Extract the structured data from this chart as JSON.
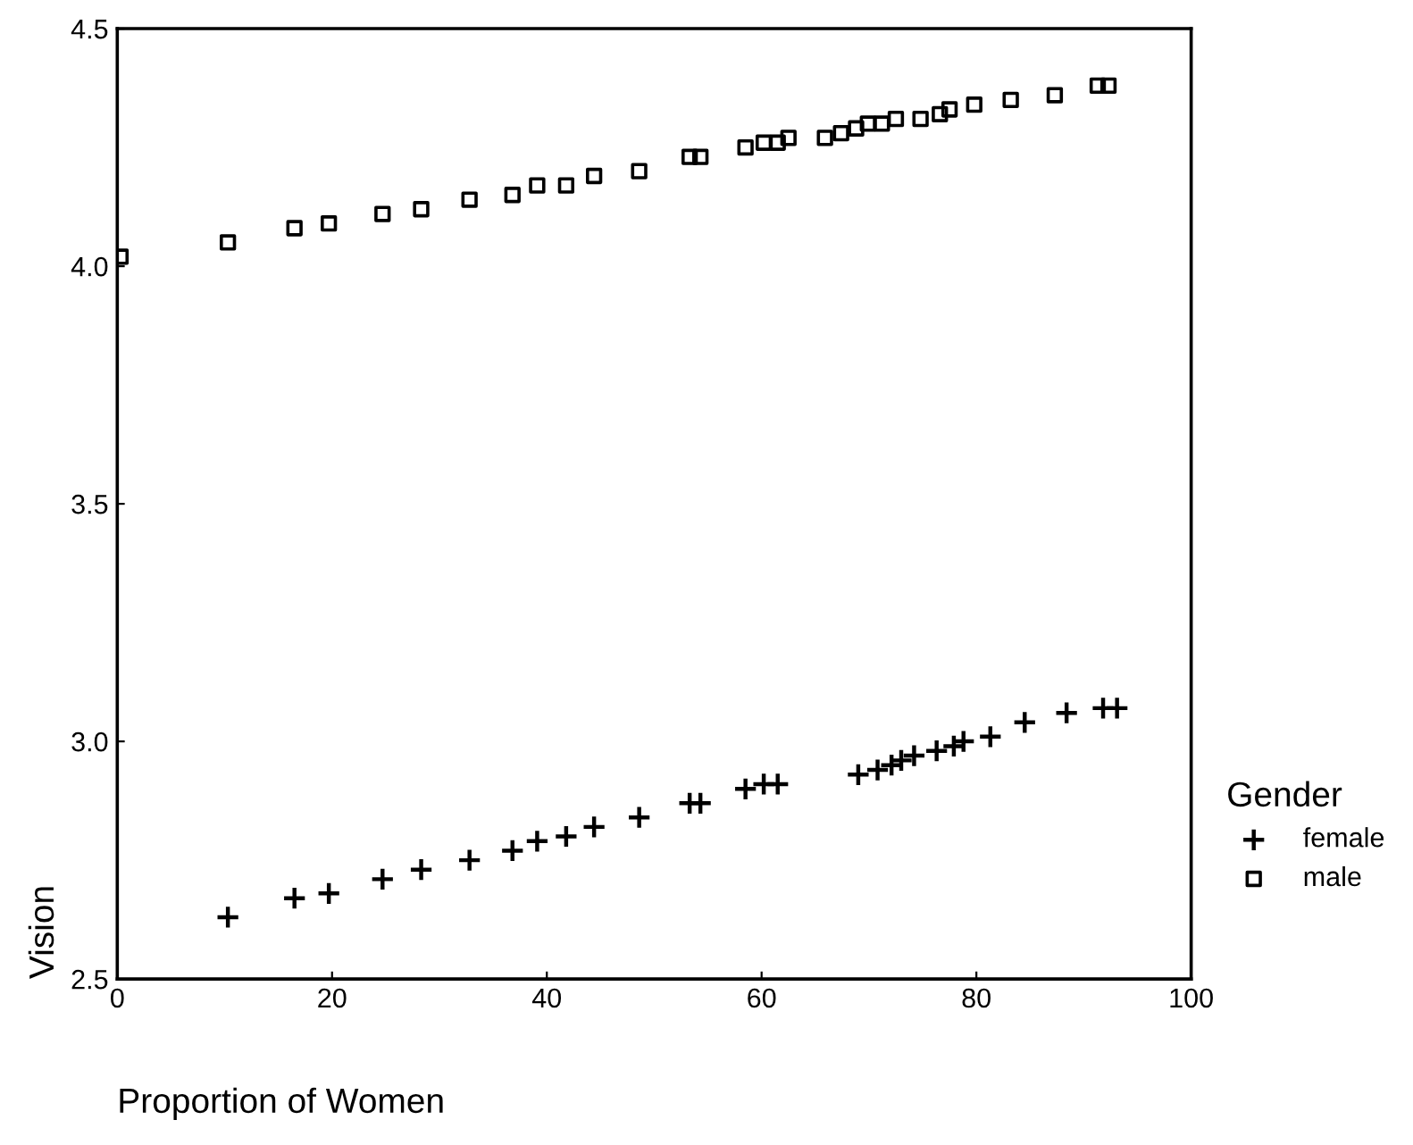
{
  "chart_data": {
    "type": "scatter",
    "xlabel": "Proportion of Women",
    "ylabel": "Vision",
    "legend_title": "Gender",
    "legend": "right",
    "grid": false,
    "xlim": [
      0,
      100
    ],
    "xticks": [
      0,
      20,
      40,
      60,
      80,
      100
    ],
    "ylim": [
      2.5,
      4.5
    ],
    "yticks": [
      2.5,
      {
        "value": 3,
        "label": "3.0"
      },
      3.5,
      {
        "value": 4,
        "label": "4.0"
      },
      4.5
    ],
    "series": [
      {
        "name": "female",
        "color": "#000000",
        "marker": "cross",
        "x": [
          10.3,
          16.5,
          19.7,
          24.7,
          28.3,
          32.8,
          36.8,
          39.1,
          41.8,
          44.4,
          48.6,
          53.3,
          54.3,
          58.5,
          60.2,
          61.5,
          69.0,
          70.8,
          72.1,
          73.0,
          74.2,
          76.3,
          77.9,
          78.8,
          81.3,
          84.5,
          88.4,
          91.8,
          93.1
        ],
        "values": [
          2.63,
          2.67,
          2.68,
          2.71,
          2.73,
          2.75,
          2.77,
          2.79,
          2.8,
          2.82,
          2.84,
          2.87,
          2.87,
          2.9,
          2.91,
          2.91,
          2.93,
          2.94,
          2.95,
          2.96,
          2.97,
          2.98,
          2.99,
          3.0,
          3.01,
          3.04,
          3.06,
          3.07,
          3.07
        ]
      },
      {
        "name": "male",
        "color": "#000000",
        "marker": "square",
        "x": [
          0.3,
          10.3,
          16.5,
          19.7,
          24.7,
          28.3,
          32.8,
          36.8,
          39.1,
          41.8,
          44.4,
          48.6,
          53.3,
          54.3,
          58.5,
          60.2,
          61.5,
          62.5,
          65.9,
          67.4,
          68.8,
          69.9,
          71.2,
          72.5,
          74.8,
          76.6,
          77.5,
          79.8,
          83.2,
          87.3,
          91.3,
          92.3
        ],
        "values": [
          4.02,
          4.05,
          4.08,
          4.09,
          4.11,
          4.12,
          4.14,
          4.15,
          4.17,
          4.17,
          4.19,
          4.2,
          4.23,
          4.23,
          4.25,
          4.26,
          4.26,
          4.27,
          4.27,
          4.28,
          4.29,
          4.3,
          4.3,
          4.31,
          4.31,
          4.32,
          4.33,
          4.34,
          4.35,
          4.36,
          4.38,
          4.38
        ]
      }
    ]
  }
}
